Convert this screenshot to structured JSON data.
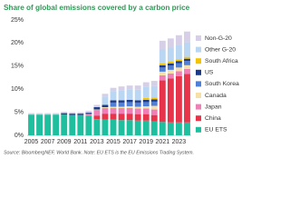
{
  "chart_data": {
    "type": "stacked-bar",
    "title": "Share of global emissions covered by a carbon price",
    "note": "Source: BloombergNEF, World Bank. Note: EU ETS is the EU Emissions Trading System.",
    "categories": [
      "2005",
      null,
      "2007",
      null,
      "2009",
      null,
      "2011",
      null,
      "2013",
      null,
      "2015",
      null,
      "2017",
      null,
      "2019",
      null,
      "2021",
      null,
      "2023",
      null
    ],
    "ylim": [
      0,
      25
    ],
    "yticks": [
      {
        "value": 0,
        "label": "0%"
      },
      {
        "value": 5,
        "label": "5%"
      },
      {
        "value": 10,
        "label": "10%"
      },
      {
        "value": 15,
        "label": "15%"
      },
      {
        "value": 20,
        "label": "20%"
      },
      {
        "value": 25,
        "label": "25%"
      }
    ],
    "grid": false,
    "legend": "right",
    "series": [
      {
        "name": "EU ETS",
        "color": "#1ebf9f",
        "values": [
          4.5,
          4.5,
          4.5,
          4.5,
          4.5,
          4.4,
          4.4,
          4.3,
          3.5,
          3.4,
          3.4,
          3.3,
          3.3,
          3.2,
          3.2,
          3.0,
          2.9,
          2.8,
          2.8,
          2.8
        ]
      },
      {
        "name": "China",
        "color": "#e8344a",
        "values": [
          0,
          0,
          0,
          0,
          0,
          0,
          0,
          0,
          0.8,
          1.3,
          1.3,
          1.4,
          1.4,
          1.4,
          1.4,
          1.4,
          9.0,
          9.5,
          10.0,
          10.5
        ]
      },
      {
        "name": "Japan",
        "color": "#f07fb8",
        "values": [
          0,
          0,
          0,
          0,
          0,
          0,
          0,
          0.2,
          1.2,
          1.2,
          1.2,
          1.2,
          1.2,
          1.2,
          1.2,
          1.2,
          1.1,
          1.1,
          1.1,
          1.1
        ]
      },
      {
        "name": "Canada",
        "color": "#f7dfa8",
        "values": [
          0,
          0,
          0,
          0,
          0,
          0,
          0,
          0.1,
          0.1,
          0.2,
          0.3,
          0.3,
          0.4,
          0.4,
          0.5,
          0.8,
          0.8,
          0.8,
          0.8,
          0.8
        ]
      },
      {
        "name": "South Korea",
        "color": "#4f7fd6",
        "values": [
          0,
          0,
          0,
          0,
          0,
          0,
          0,
          0,
          0,
          0,
          0.9,
          0.9,
          0.9,
          0.9,
          0.9,
          0.9,
          0.9,
          0.9,
          0.9,
          0.9
        ]
      },
      {
        "name": "US",
        "color": "#1c3a8a",
        "values": [
          0,
          0,
          0,
          0,
          0.3,
          0.3,
          0.3,
          0.3,
          0.5,
          0.5,
          0.5,
          0.5,
          0.5,
          0.5,
          0.5,
          0.5,
          0.5,
          0.5,
          0.5,
          0.5
        ]
      },
      {
        "name": "South Africa",
        "color": "#f5c400",
        "values": [
          0,
          0,
          0,
          0,
          0,
          0,
          0,
          0,
          0,
          0,
          0,
          0,
          0,
          0,
          0.4,
          0.4,
          0.4,
          0.4,
          0.4,
          0.4
        ]
      },
      {
        "name": "Other G-20",
        "color": "#b9d7f2",
        "values": [
          0,
          0,
          0,
          0,
          0,
          0,
          0,
          0,
          0,
          1.8,
          2.0,
          2.2,
          2.3,
          2.3,
          2.4,
          2.5,
          3.0,
          3.0,
          3.1,
          3.2
        ]
      },
      {
        "name": "Non-G-20",
        "color": "#d7cfe8",
        "values": [
          0.3,
          0.3,
          0.3,
          0.3,
          0.3,
          0.3,
          0.3,
          0.4,
          0.5,
          0.6,
          0.7,
          0.8,
          0.8,
          0.9,
          1.0,
          1.1,
          1.9,
          2.0,
          2.1,
          2.3
        ]
      }
    ]
  }
}
